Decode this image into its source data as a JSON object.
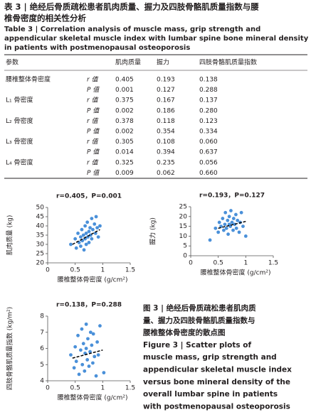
{
  "header": {
    "title_lines": [
      "表 3 | 绝经后骨质疏松患者肌肉质量、握力及四肢骨骼肌质量指数与腰",
      "椎骨密度的相关性分析"
    ],
    "english_lines": [
      "Table 3 | Correlation analysis of muscle mass, grip strength and",
      "appendicular skeletal muscle index with lumbar spine bone mineral density",
      "in patients with postmenopausal osteoporosis"
    ]
  },
  "table": {
    "columns": [
      "参数",
      "肌肉质量",
      "握力",
      "四肢骨骼肌质量指数"
    ],
    "rows": [
      {
        "label": "腰椎整体骨密度",
        "stat": "r 值",
        "values": [
          "0.405",
          "0.193",
          "0.138"
        ]
      },
      {
        "stat": "P 值",
        "values": [
          "0.001",
          "0.127",
          "0.288"
        ]
      },
      {
        "label": "L₁ 骨密度",
        "stat": "r 值",
        "values": [
          "0.375",
          "0.167",
          "0.137"
        ]
      },
      {
        "stat": "P 值",
        "values": [
          "0.002",
          "0.186",
          "0.280"
        ]
      },
      {
        "label": "L₂ 骨密度",
        "stat": "r 值",
        "values": [
          "0.378",
          "0.118",
          "0.123"
        ]
      },
      {
        "stat": "P 值",
        "values": [
          "0.002",
          "0.354",
          "0.334"
        ]
      },
      {
        "label": "L₃ 骨密度",
        "stat": "r 值",
        "values": [
          "0.305",
          "0.108",
          "0.060"
        ]
      },
      {
        "stat": "P 值",
        "values": [
          "0.014",
          "0.394",
          "0.637"
        ]
      },
      {
        "label": "L₄ 骨密度",
        "stat": "r 值",
        "values": [
          "0.325",
          "0.235",
          "0.056"
        ]
      },
      {
        "stat": "P 值",
        "values": [
          "0.009",
          "0.062",
          "0.660"
        ]
      }
    ]
  },
  "chart_data": [
    {
      "type": "scatter",
      "annotation": "r=0.405，P=0.001",
      "x_label": "腰椎整体骨密度 (g/cm²)",
      "y_label": "肌肉质量 (kg)",
      "color": "#4a90d9",
      "xlim": [
        0,
        1.5
      ],
      "xticks": [
        0,
        0.5,
        1,
        1.5
      ],
      "ylim": [
        20,
        50
      ],
      "yticks": [
        20,
        25,
        30,
        35,
        40,
        45,
        50
      ],
      "x": [
        0.42,
        0.5,
        0.52,
        0.55,
        0.57,
        0.6,
        0.6,
        0.62,
        0.63,
        0.65,
        0.66,
        0.68,
        0.68,
        0.7,
        0.7,
        0.72,
        0.73,
        0.75,
        0.75,
        0.77,
        0.78,
        0.8,
        0.8,
        0.82,
        0.85,
        0.87,
        0.88,
        0.9,
        0.92,
        0.95
      ],
      "values": [
        30,
        33,
        28,
        36,
        31,
        34,
        29,
        38,
        32,
        35,
        27,
        40,
        33,
        36,
        30,
        42,
        34,
        37,
        31,
        39,
        35,
        44,
        33,
        38,
        41,
        36,
        45,
        39,
        34,
        40
      ],
      "fit_line": {
        "x": [
          0.45,
          0.95
        ],
        "y": [
          30,
          38
        ]
      }
    },
    {
      "type": "scatter",
      "annotation": "r=0.193，P=0.127",
      "x_label": "腰椎整体骨密度 (g/cm²)",
      "y_label": "握力 (kg)",
      "color": "#4a90d9",
      "xlim": [
        0,
        1.5
      ],
      "xticks": [
        0,
        0.5,
        1,
        1.5
      ],
      "ylim": [
        0,
        25
      ],
      "yticks": [
        0,
        5,
        10,
        15,
        20,
        25
      ],
      "x": [
        0.35,
        0.45,
        0.5,
        0.52,
        0.55,
        0.58,
        0.6,
        0.62,
        0.63,
        0.65,
        0.67,
        0.68,
        0.7,
        0.7,
        0.72,
        0.73,
        0.75,
        0.77,
        0.78,
        0.8,
        0.82,
        0.83,
        0.85,
        0.88,
        0.9,
        0.92,
        0.95,
        1.0
      ],
      "values": [
        8,
        14,
        12,
        17,
        15,
        19,
        13,
        16,
        22,
        14,
        18,
        11,
        16,
        20,
        15,
        23,
        17,
        13,
        19,
        16,
        21,
        14,
        18,
        12,
        17,
        22,
        15,
        10
      ],
      "fit_line": {
        "x": [
          0.5,
          1.0
        ],
        "y": [
          14,
          17.5
        ]
      }
    },
    {
      "type": "scatter",
      "annotation": "r=0.138，P=0.288",
      "x_label": "腰椎整体骨密度 (g/cm²)",
      "y_label": "四肢骨骼肌质量指数 (kg/m²)",
      "color": "#4a90d9",
      "xlim": [
        0,
        1.5
      ],
      "xticks": [
        0,
        0.5,
        1,
        1.5
      ],
      "ylim": [
        4,
        8
      ],
      "yticks": [
        4,
        5,
        6,
        7,
        8
      ],
      "x": [
        0.42,
        0.48,
        0.5,
        0.52,
        0.55,
        0.57,
        0.6,
        0.62,
        0.63,
        0.65,
        0.67,
        0.68,
        0.7,
        0.7,
        0.72,
        0.73,
        0.75,
        0.77,
        0.78,
        0.8,
        0.82,
        0.83,
        0.85,
        0.88,
        0.9,
        0.92,
        0.95,
        1.02
      ],
      "values": [
        5.6,
        4.8,
        6.1,
        5.2,
        6.8,
        4.4,
        5.9,
        7.2,
        5.0,
        6.3,
        4.6,
        5.7,
        7.5,
        6.0,
        5.3,
        6.6,
        4.9,
        5.8,
        7.0,
        6.2,
        5.1,
        6.9,
        5.5,
        4.3,
        6.4,
        5.6,
        7.4,
        4.5
      ],
      "fit_line": {
        "x": [
          0.45,
          1.0
        ],
        "y": [
          5.4,
          5.9
        ]
      }
    }
  ],
  "caption": {
    "lines": [
      "图 3 | 绝经后骨质疏松患者肌肉质",
      "量、握力及四肢骨骼肌质量指数与",
      "腰椎整体骨密度的散点图",
      "Figure 3 | Scatter plots of",
      "muscle mass, grip strength and",
      "appendicular skeletal muscle index",
      "versus bone mineral density of the",
      "overall lumbar spine in patients",
      "with postmenopausal osteoporosis"
    ]
  }
}
